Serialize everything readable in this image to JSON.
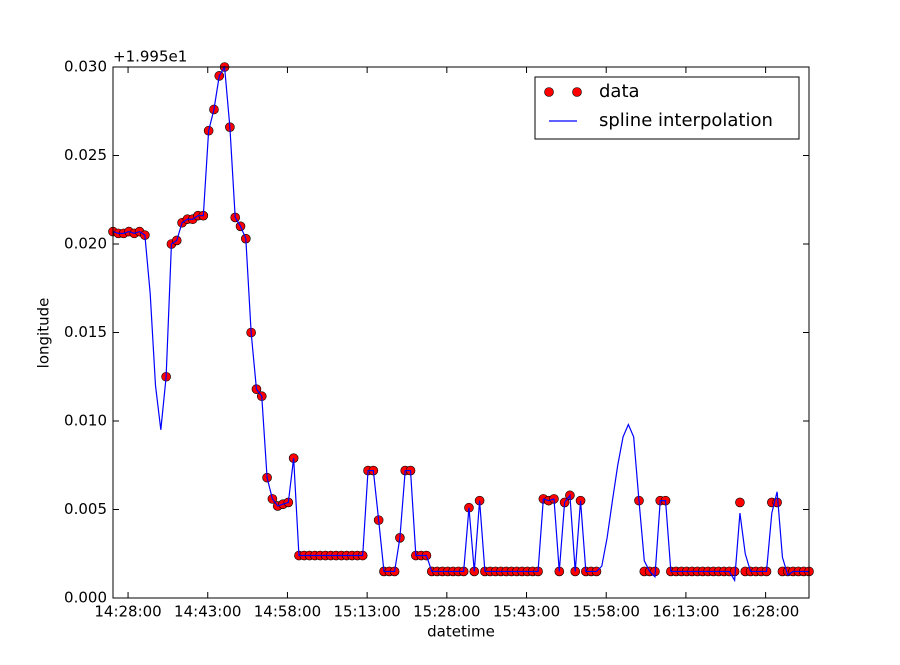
{
  "chart_data": {
    "type": "scatter_line",
    "x_label": "datetime",
    "y_label": "longitude",
    "offset_label": "+1.995e1",
    "x": [
      "14:25:10",
      "14:26:10",
      "14:27:10",
      "14:28:10",
      "14:29:10",
      "14:30:10",
      "14:31:10",
      "14:32:10",
      "14:33:10",
      "14:34:10",
      "14:35:10",
      "14:36:10",
      "14:37:10",
      "14:38:10",
      "14:39:10",
      "14:40:10",
      "14:41:10",
      "14:42:10",
      "14:43:10",
      "14:44:10",
      "14:45:10",
      "14:46:10",
      "14:47:10",
      "14:48:10",
      "14:49:10",
      "14:50:10",
      "14:51:10",
      "14:52:10",
      "14:53:10",
      "14:54:10",
      "14:55:10",
      "14:56:10",
      "14:57:10",
      "14:58:10",
      "14:59:10",
      "15:00:10",
      "15:01:10",
      "15:02:10",
      "15:03:10",
      "15:04:10",
      "15:05:10",
      "15:06:10",
      "15:07:10",
      "15:08:10",
      "15:09:10",
      "15:10:10",
      "15:11:10",
      "15:12:10",
      "15:13:10",
      "15:14:10",
      "15:15:10",
      "15:16:10",
      "15:17:10",
      "15:18:10",
      "15:19:10",
      "15:20:10",
      "15:21:10",
      "15:22:10",
      "15:23:10",
      "15:24:10",
      "15:25:10",
      "15:26:10",
      "15:27:10",
      "15:28:10",
      "15:29:10",
      "15:30:10",
      "15:31:10",
      "15:32:10",
      "15:33:10",
      "15:34:10",
      "15:35:10",
      "15:36:10",
      "15:37:10",
      "15:38:10",
      "15:39:10",
      "15:40:10",
      "15:41:10",
      "15:42:10",
      "15:43:10",
      "15:44:10",
      "15:45:10",
      "15:46:10",
      "15:47:10",
      "15:48:10",
      "15:49:10",
      "15:50:10",
      "15:51:10",
      "15:52:10",
      "15:53:10",
      "15:54:10",
      "15:55:10",
      "15:56:10",
      "15:57:10",
      "15:58:10",
      "15:59:10",
      "16:00:10",
      "16:01:10",
      "16:02:10",
      "16:03:10",
      "16:04:10",
      "16:05:10",
      "16:06:10",
      "16:07:10",
      "16:08:10",
      "16:09:10",
      "16:10:10",
      "16:11:10",
      "16:12:10",
      "16:13:10",
      "16:14:10",
      "16:15:10",
      "16:16:10",
      "16:17:10",
      "16:18:10",
      "16:19:10",
      "16:20:10",
      "16:21:10",
      "16:22:10",
      "16:23:10",
      "16:24:10",
      "16:25:10",
      "16:26:10",
      "16:27:10",
      "16:28:10",
      "16:29:10",
      "16:30:10",
      "16:31:10",
      "16:32:10",
      "16:33:10",
      "16:34:10",
      "16:35:10",
      "16:36:10"
    ],
    "series": [
      {
        "name": "data",
        "kind": "markers",
        "color": "#ff0000",
        "values": [
          0.0207,
          0.0206,
          0.0206,
          0.0207,
          0.0206,
          0.0207,
          0.0205,
          null,
          null,
          null,
          0.0125,
          0.02,
          0.0202,
          0.0212,
          0.0214,
          0.0214,
          0.0216,
          0.0216,
          0.0264,
          0.0276,
          0.0295,
          0.03,
          0.0266,
          0.0215,
          0.021,
          0.0203,
          0.015,
          0.0118,
          0.0114,
          0.0068,
          0.0056,
          0.0052,
          0.0053,
          0.0054,
          0.0079,
          0.0024,
          0.0024,
          0.0024,
          0.0024,
          0.0024,
          0.0024,
          0.0024,
          0.0024,
          0.0024,
          0.0024,
          0.0024,
          0.0024,
          0.0024,
          0.0072,
          0.0072,
          0.0044,
          0.0015,
          0.0015,
          0.0015,
          0.0034,
          0.0072,
          0.0072,
          0.0024,
          0.0024,
          0.0024,
          0.0015,
          0.0015,
          0.0015,
          0.0015,
          0.0015,
          0.0015,
          0.0015,
          0.0051,
          0.0015,
          0.0055,
          0.0015,
          0.0015,
          0.0015,
          0.0015,
          0.0015,
          0.0015,
          0.0015,
          0.0015,
          0.0015,
          0.0015,
          0.0015,
          0.0056,
          0.0055,
          0.0056,
          0.0015,
          0.0054,
          0.0058,
          0.0015,
          0.0055,
          0.0015,
          0.0015,
          0.0015,
          null,
          null,
          null,
          null,
          null,
          null,
          null,
          0.0055,
          0.0015,
          0.0015,
          0.0015,
          0.0055,
          0.0055,
          0.0015,
          0.0015,
          0.0015,
          0.0015,
          0.0015,
          0.0015,
          0.0015,
          0.0015,
          0.0015,
          0.0015,
          0.0015,
          0.0015,
          0.0015,
          0.0054,
          0.0015,
          0.0015,
          0.0015,
          0.0015,
          0.0015,
          0.0054,
          0.0054,
          0.0015,
          0.0015,
          0.0015,
          0.0015,
          0.0015,
          0.0015
        ]
      },
      {
        "name": "spline interpolation",
        "kind": "line",
        "color": "#0000ff",
        "values": [
          0.0207,
          0.0206,
          0.0206,
          0.0207,
          0.0206,
          0.0207,
          0.0205,
          0.0172,
          0.012,
          0.0095,
          0.0125,
          0.02,
          0.0202,
          0.0212,
          0.0214,
          0.0214,
          0.0216,
          0.0216,
          0.0264,
          0.0276,
          0.0295,
          0.03,
          0.0266,
          0.0215,
          0.021,
          0.0203,
          0.015,
          0.0118,
          0.0114,
          0.0068,
          0.0056,
          0.0052,
          0.0053,
          0.0054,
          0.0079,
          0.0024,
          0.0024,
          0.0024,
          0.0024,
          0.0024,
          0.0024,
          0.0024,
          0.0024,
          0.0024,
          0.0024,
          0.0024,
          0.0024,
          0.0024,
          0.0072,
          0.0072,
          0.0044,
          0.0015,
          0.0015,
          0.0015,
          0.0034,
          0.0072,
          0.0072,
          0.0024,
          0.0024,
          0.0024,
          0.0015,
          0.0015,
          0.0015,
          0.0015,
          0.0015,
          0.0015,
          0.0015,
          0.0051,
          0.0015,
          0.0055,
          0.0015,
          0.0015,
          0.0015,
          0.0015,
          0.0015,
          0.0015,
          0.0015,
          0.0015,
          0.0015,
          0.0015,
          0.0015,
          0.0056,
          0.0055,
          0.0056,
          0.0015,
          0.0054,
          0.0058,
          0.0015,
          0.0055,
          0.0015,
          0.0015,
          0.0015,
          0.0018,
          0.0034,
          0.0055,
          0.0075,
          0.0091,
          0.0098,
          0.0091,
          0.0055,
          0.0021,
          0.0015,
          0.0012,
          0.0055,
          0.0055,
          0.0015,
          0.0015,
          0.0015,
          0.0015,
          0.0015,
          0.0015,
          0.0015,
          0.0015,
          0.0015,
          0.0015,
          0.0015,
          0.0015,
          0.001,
          0.0048,
          0.0025,
          0.0015,
          0.0015,
          0.0015,
          0.0015,
          0.0048,
          0.006,
          0.0023,
          0.0013,
          0.0015,
          0.0015,
          0.0015,
          0.0015
        ]
      }
    ],
    "xlim": [
      "14:25:10",
      "16:36:10"
    ],
    "xticks": [
      "14:28:00",
      "14:43:00",
      "14:58:00",
      "15:13:00",
      "15:28:00",
      "15:43:00",
      "15:58:00",
      "16:13:00",
      "16:28:00"
    ],
    "ylim": [
      0,
      0.03
    ],
    "yticks": [
      {
        "value": 0,
        "label": "0.000"
      },
      {
        "value": 0.005,
        "label": "0.005"
      },
      {
        "value": 0.01,
        "label": "0.010"
      },
      {
        "value": 0.015,
        "label": "0.015"
      },
      {
        "value": 0.02,
        "label": "0.020"
      },
      {
        "value": 0.025,
        "label": "0.025"
      },
      {
        "value": 0.03,
        "label": "0.030"
      }
    ],
    "legend": "upper right",
    "grid": false
  }
}
